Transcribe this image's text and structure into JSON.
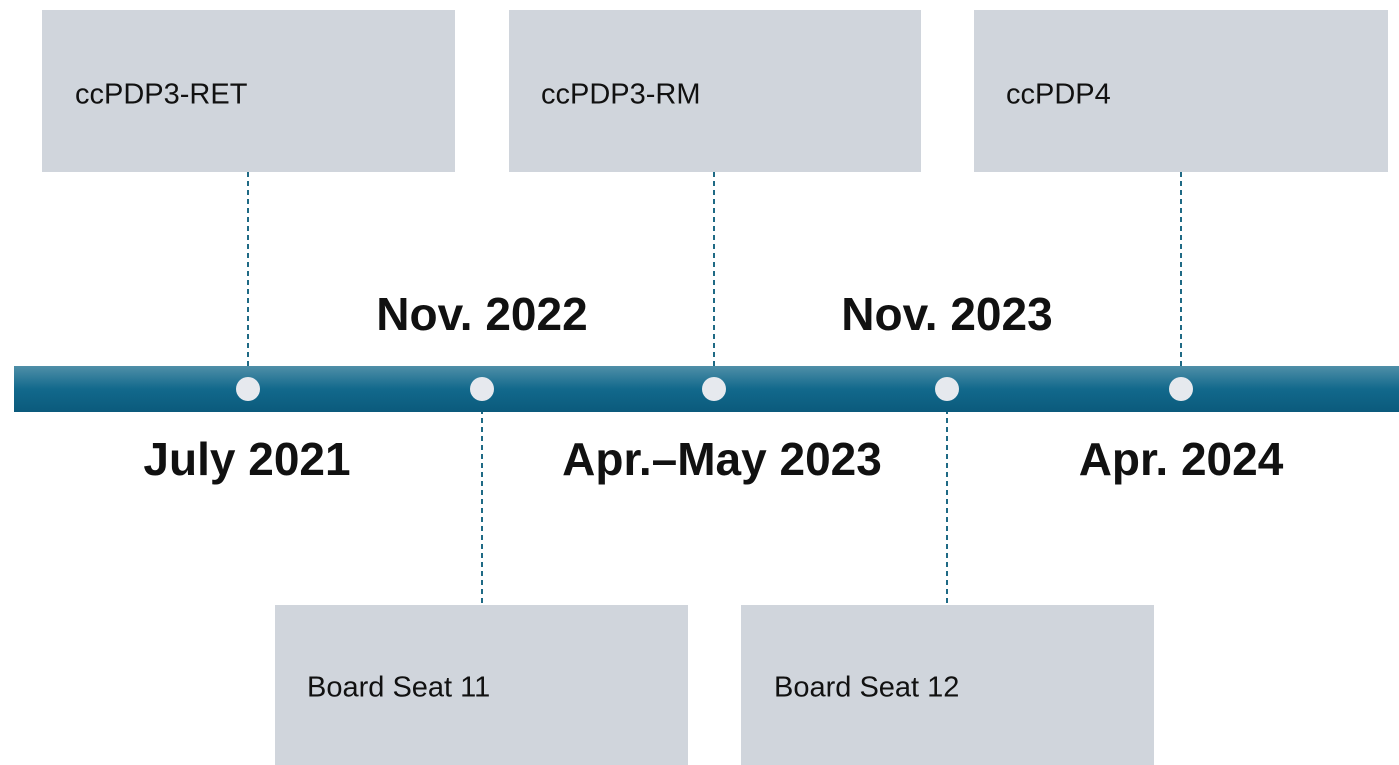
{
  "events": [
    {
      "date": "July 2021",
      "label": "ccPDP3-RET"
    },
    {
      "date": "Nov. 2022",
      "label": "Board Seat 11"
    },
    {
      "date": "Apr.–May 2023",
      "label": "ccPDP3-RM"
    },
    {
      "date": "Nov. 2023",
      "label": "Board Seat 12"
    },
    {
      "date": "Apr. 2024",
      "label": "ccPDP4"
    }
  ]
}
